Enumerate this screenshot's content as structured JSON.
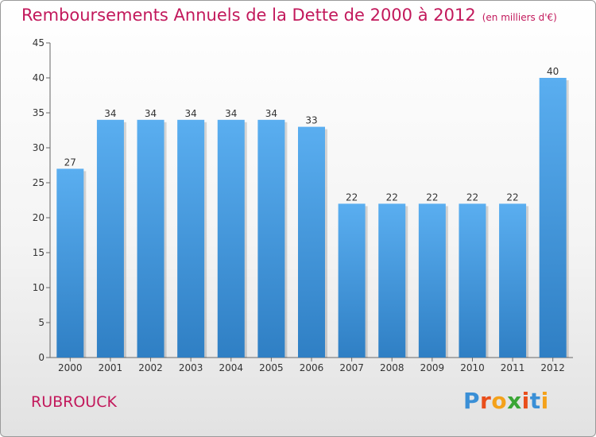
{
  "title": "Remboursements Annuels de la Dette de 2000 à 2012",
  "unit_label": "(en milliers d'€)",
  "location": "RUBROUCK",
  "logo": {
    "letters": [
      "P",
      "r",
      "o",
      "x",
      "i",
      "t",
      "i"
    ],
    "colors": [
      "#3a8fd6",
      "#e94e1b",
      "#f4a21b",
      "#3aa635",
      "#e94e1b",
      "#3a8fd6",
      "#f4a21b"
    ]
  },
  "chart_data": {
    "type": "bar",
    "categories": [
      "2000",
      "2001",
      "2002",
      "2003",
      "2004",
      "2005",
      "2006",
      "2007",
      "2008",
      "2009",
      "2010",
      "2011",
      "2012"
    ],
    "values": [
      27,
      34,
      34,
      34,
      34,
      34,
      33,
      22,
      22,
      22,
      22,
      22,
      40
    ],
    "data_labels": [
      "27",
      "34",
      "34",
      "34",
      "34",
      "34",
      "33",
      "22",
      "22",
      "22",
      "22",
      "22",
      "40"
    ],
    "title": "Remboursements Annuels de la Dette de 2000 à 2012",
    "xlabel": "",
    "ylabel": "",
    "ylim": [
      0,
      45
    ],
    "yticks": [
      "0",
      "5",
      "10",
      "15",
      "20",
      "25",
      "30",
      "35",
      "40",
      "45"
    ],
    "grid": false,
    "bar_color": "#4a9fe0",
    "bar_color_dark": "#2f7fc4"
  }
}
